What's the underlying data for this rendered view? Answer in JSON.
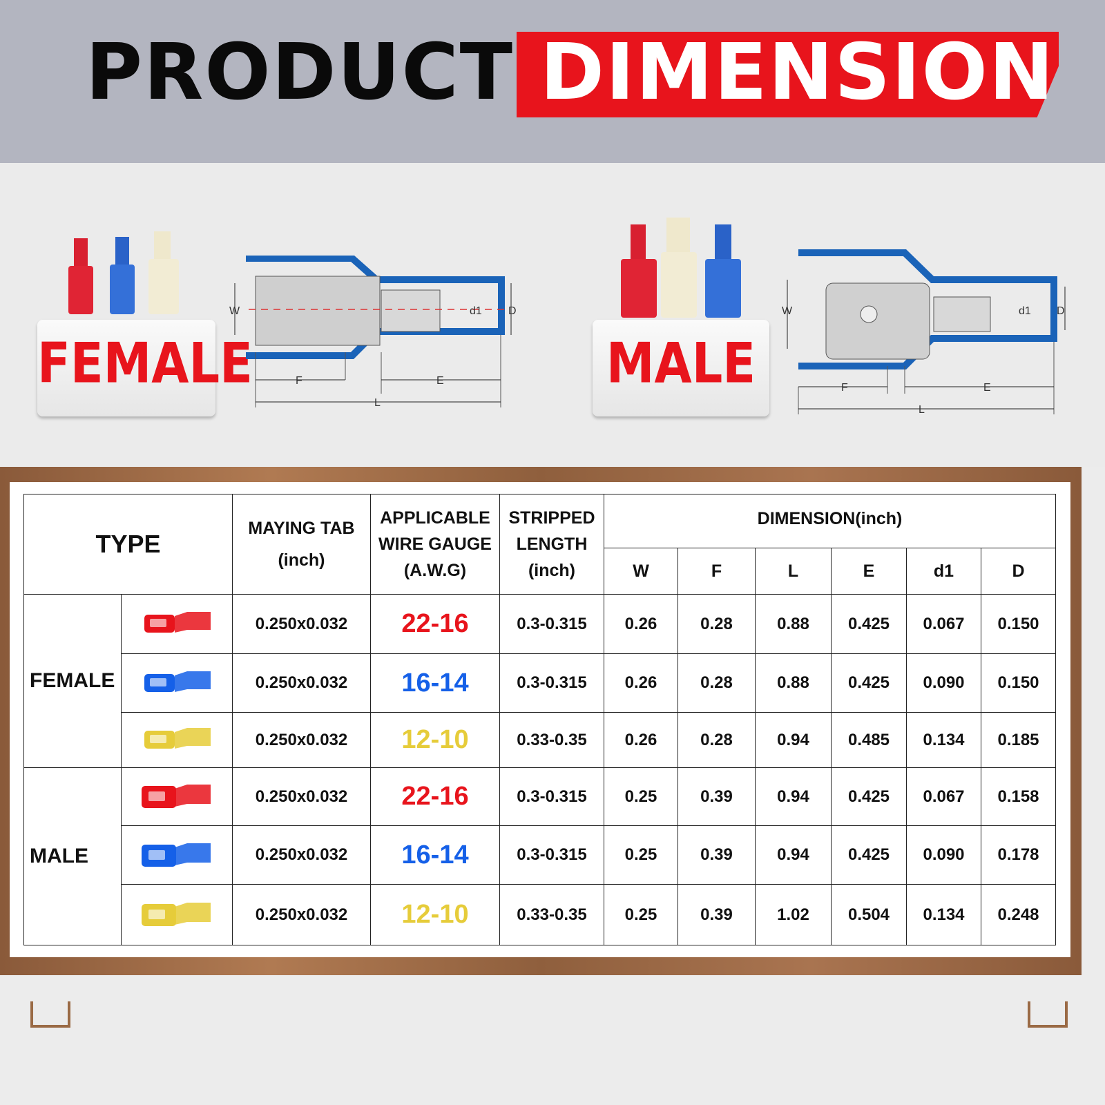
{
  "banner": {
    "title_black": "PRODUCT",
    "title_red": "DIMENSION"
  },
  "colors": {
    "red": "#e8141c",
    "blue": "#1560e8",
    "yellow": "#e6cc3a",
    "diagram_blue": "#1a63b8"
  },
  "female_badge": {
    "label": "FEMALE"
  },
  "male_badge": {
    "label": "MALE"
  },
  "diagram_labels": {
    "W": "W",
    "F": "F",
    "E": "E",
    "L": "L",
    "d1": "d1",
    "D": "D"
  },
  "table": {
    "headers": {
      "type": "TYPE",
      "tab_line1": "MAYING TAB",
      "tab_line2": "(inch)",
      "gauge_line1": "APPLICABLE",
      "gauge_line2": "WIRE GAUGE",
      "gauge_line3": "(A.W.G)",
      "strip_line1": "STRIPPED",
      "strip_line2": "LENGTH",
      "strip_line3": "(inch)",
      "dimension": "DIMENSION(inch)",
      "dims": [
        "W",
        "F",
        "L",
        "E",
        "d1",
        "D"
      ]
    },
    "groups": [
      {
        "label": "FEMALE",
        "rows": [
          {
            "icon": "red-female-connector-icon",
            "color": "red",
            "tab": "0.250x0.032",
            "gauge": "22-16",
            "strip": "0.3-0.315",
            "W": "0.26",
            "F": "0.28",
            "L": "0.88",
            "E": "0.425",
            "d1": "0.067",
            "D": "0.150"
          },
          {
            "icon": "blue-female-connector-icon",
            "color": "blue",
            "tab": "0.250x0.032",
            "gauge": "16-14",
            "strip": "0.3-0.315",
            "W": "0.26",
            "F": "0.28",
            "L": "0.88",
            "E": "0.425",
            "d1": "0.090",
            "D": "0.150"
          },
          {
            "icon": "yellow-female-connector-icon",
            "color": "yellow",
            "tab": "0.250x0.032",
            "gauge": "12-10",
            "strip": "0.33-0.35",
            "W": "0.26",
            "F": "0.28",
            "L": "0.94",
            "E": "0.485",
            "d1": "0.134",
            "D": "0.185"
          }
        ]
      },
      {
        "label": "MALE",
        "rows": [
          {
            "icon": "red-male-connector-icon",
            "color": "red",
            "tab": "0.250x0.032",
            "gauge": "22-16",
            "strip": "0.3-0.315",
            "W": "0.25",
            "F": "0.39",
            "L": "0.94",
            "E": "0.425",
            "d1": "0.067",
            "D": "0.158"
          },
          {
            "icon": "blue-male-connector-icon",
            "color": "blue",
            "tab": "0.250x0.032",
            "gauge": "16-14",
            "strip": "0.3-0.315",
            "W": "0.25",
            "F": "0.39",
            "L": "0.94",
            "E": "0.425",
            "d1": "0.090",
            "D": "0.178"
          },
          {
            "icon": "yellow-male-connector-icon",
            "color": "yellow",
            "tab": "0.250x0.032",
            "gauge": "12-10",
            "strip": "0.33-0.35",
            "W": "0.25",
            "F": "0.39",
            "L": "1.02",
            "E": "0.504",
            "d1": "0.134",
            "D": "0.248"
          }
        ]
      }
    ]
  }
}
